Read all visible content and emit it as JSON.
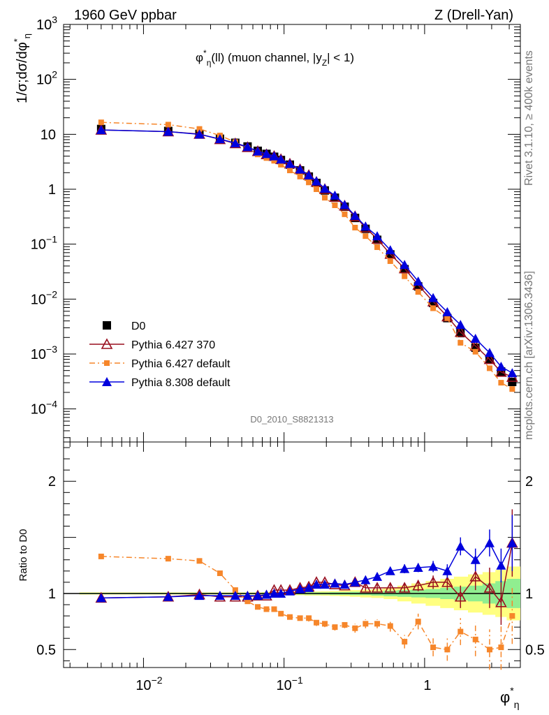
{
  "header": {
    "left": "1960 GeV ppbar",
    "right": "Z (Drell-Yan)"
  },
  "side_labels": {
    "rivet": "Rivet 3.1.10, ≥ 400k events",
    "mcplots": "mcplots.cern.ch [arXiv:1306.3436]"
  },
  "watermark": "D0_2010_S8821313",
  "colors": {
    "data": "#000000",
    "py6_370": "#990f1f",
    "py6_def": "#f6862a",
    "py8": "#0000dd",
    "band_inner": "#90ee90",
    "band_outer": "#ffff80"
  },
  "chart_data": [
    {
      "type": "line",
      "title_parts": [
        "φ",
        "*",
        "η",
        "(ll) (muon channel, |",
        "y",
        "Z",
        "| < 1)"
      ],
      "ylabel": "1/σ;dσ/dφ*η",
      "xscale": "log",
      "yscale": "log",
      "xlim": [
        0.0027,
        4.8
      ],
      "ylim": [
        2.5e-05,
        1000
      ],
      "xticks": [
        "10^-2",
        "10^-1",
        "1"
      ],
      "yticks": [
        "10^-4",
        "10^-3",
        "10^-2",
        "10^-1",
        "1",
        "10",
        "10^2",
        "10^3"
      ],
      "x": [
        0.005,
        0.015,
        0.025,
        0.035,
        0.045,
        0.055,
        0.065,
        0.075,
        0.085,
        0.095,
        0.11,
        0.13,
        0.15,
        0.17,
        0.195,
        0.23,
        0.27,
        0.32,
        0.38,
        0.46,
        0.57,
        0.72,
        0.9,
        1.15,
        1.45,
        1.8,
        2.3,
        2.9,
        3.5,
        4.2
      ],
      "legend": [
        "D0",
        "Pythia 6.427 370",
        "Pythia 6.427 default",
        "Pythia 8.308 default"
      ],
      "series": [
        {
          "name": "D0",
          "values": [
            12.5,
            11.5,
            10.2,
            8.3,
            7.0,
            6.0,
            5.0,
            4.4,
            3.9,
            3.4,
            2.8,
            2.2,
            1.7,
            1.3,
            0.95,
            0.7,
            0.48,
            0.3,
            0.19,
            0.12,
            0.065,
            0.035,
            0.017,
            0.0085,
            0.0045,
            0.0024,
            0.0013,
            0.0008,
            0.00048,
            0.00031
          ]
        },
        {
          "name": "Pythia 6.427 370",
          "values": [
            12.0,
            11.2,
            10.1,
            8.1,
            6.8,
            5.8,
            4.9,
            4.3,
            4.0,
            3.5,
            2.9,
            2.3,
            1.8,
            1.35,
            1.0,
            0.72,
            0.5,
            0.32,
            0.2,
            0.124,
            0.066,
            0.036,
            0.018,
            0.009,
            0.0048,
            0.0025,
            0.0014,
            0.0008,
            0.00047,
            0.00038
          ]
        },
        {
          "name": "Pythia 6.427 default",
          "values": [
            16.5,
            15.0,
            12.5,
            9.5,
            7.2,
            5.6,
            4.3,
            3.7,
            3.3,
            2.8,
            2.2,
            1.7,
            1.33,
            1.0,
            0.7,
            0.51,
            0.35,
            0.2,
            0.14,
            0.088,
            0.049,
            0.026,
            0.0135,
            0.0068,
            0.0045,
            0.0016,
            0.0011,
            0.00055,
            0.0003,
            0.00023
          ]
        },
        {
          "name": "Pythia 8.308 default",
          "values": [
            12.0,
            11.2,
            10.0,
            8.2,
            6.9,
            5.9,
            4.9,
            4.4,
            4.0,
            3.5,
            2.9,
            2.3,
            1.8,
            1.4,
            1.03,
            0.77,
            0.52,
            0.33,
            0.21,
            0.14,
            0.078,
            0.042,
            0.021,
            0.0105,
            0.0058,
            0.0034,
            0.0019,
            0.00105,
            0.00059,
            0.00045
          ]
        }
      ]
    },
    {
      "type": "line",
      "ylabel": "Ratio to D0",
      "xlabel_parts": [
        "φ",
        "*",
        "η"
      ],
      "xscale": "log",
      "xlim": [
        0.0027,
        4.8
      ],
      "ylim": [
        0.34,
        2.35
      ],
      "yticks": [
        "0.5",
        "1",
        "2"
      ],
      "band_inner": [
        0.006,
        0.006,
        0.006,
        0.006,
        0.006,
        0.006,
        0.006,
        0.006,
        0.008,
        0.008,
        0.008,
        0.008,
        0.01,
        0.01,
        0.01,
        0.012,
        0.012,
        0.015,
        0.015,
        0.02,
        0.025,
        0.03,
        0.035,
        0.04,
        0.05,
        0.06,
        0.07,
        0.09,
        0.11,
        0.13
      ],
      "band_outer": [
        0.01,
        0.01,
        0.01,
        0.01,
        0.01,
        0.01,
        0.01,
        0.012,
        0.014,
        0.014,
        0.014,
        0.015,
        0.018,
        0.018,
        0.02,
        0.022,
        0.025,
        0.03,
        0.035,
        0.04,
        0.05,
        0.07,
        0.09,
        0.11,
        0.13,
        0.15,
        0.17,
        0.19,
        0.21,
        0.24
      ],
      "series": [
        {
          "name": "Pythia 6.427 370",
          "values": [
            0.96,
            0.97,
            0.99,
            0.97,
            0.97,
            0.97,
            0.98,
            0.98,
            1.03,
            1.03,
            1.03,
            1.05,
            1.06,
            1.1,
            1.1,
            1.08,
            1.07,
            1.1,
            1.05,
            1.05,
            1.05,
            1.05,
            1.07,
            1.1,
            1.1,
            0.97,
            1.15,
            1.05,
            0.92,
            1.45
          ],
          "errors": [
            0.01,
            0.01,
            0.01,
            0.01,
            0.01,
            0.01,
            0.01,
            0.01,
            0.02,
            0.02,
            0.02,
            0.02,
            0.02,
            0.02,
            0.02,
            0.02,
            0.02,
            0.03,
            0.03,
            0.03,
            0.03,
            0.04,
            0.05,
            0.06,
            0.07,
            0.1,
            0.12,
            0.18,
            0.2,
            0.3
          ]
        },
        {
          "name": "Pythia 6.427 default",
          "values": [
            1.33,
            1.31,
            1.29,
            1.18,
            1.03,
            0.93,
            0.88,
            0.86,
            0.86,
            0.82,
            0.79,
            0.78,
            0.78,
            0.74,
            0.73,
            0.7,
            0.72,
            0.69,
            0.73,
            0.73,
            0.71,
            0.57,
            0.75,
            0.52,
            0.5,
            0.66,
            0.59,
            0.5,
            0.52,
            0.8
          ],
          "errors": [
            0.01,
            0.01,
            0.01,
            0.01,
            0.01,
            0.01,
            0.01,
            0.02,
            0.02,
            0.02,
            0.02,
            0.02,
            0.03,
            0.03,
            0.03,
            0.03,
            0.03,
            0.04,
            0.04,
            0.04,
            0.05,
            0.06,
            0.07,
            0.08,
            0.1,
            0.12,
            0.15,
            0.18,
            0.2,
            0.25
          ]
        },
        {
          "name": "Pythia 8.308 default",
          "values": [
            0.96,
            0.97,
            0.98,
            0.98,
            0.98,
            0.98,
            0.98,
            0.99,
            1.0,
            1.0,
            1.02,
            1.04,
            1.05,
            1.08,
            1.08,
            1.09,
            1.08,
            1.1,
            1.12,
            1.15,
            1.2,
            1.22,
            1.23,
            1.24,
            1.2,
            1.42,
            1.3,
            1.45,
            1.25,
            1.45
          ],
          "errors": [
            0.01,
            0.01,
            0.01,
            0.01,
            0.01,
            0.01,
            0.01,
            0.01,
            0.02,
            0.02,
            0.02,
            0.02,
            0.02,
            0.02,
            0.02,
            0.02,
            0.02,
            0.02,
            0.03,
            0.03,
            0.03,
            0.04,
            0.04,
            0.05,
            0.06,
            0.08,
            0.1,
            0.12,
            0.15,
            0.25
          ]
        }
      ]
    }
  ]
}
